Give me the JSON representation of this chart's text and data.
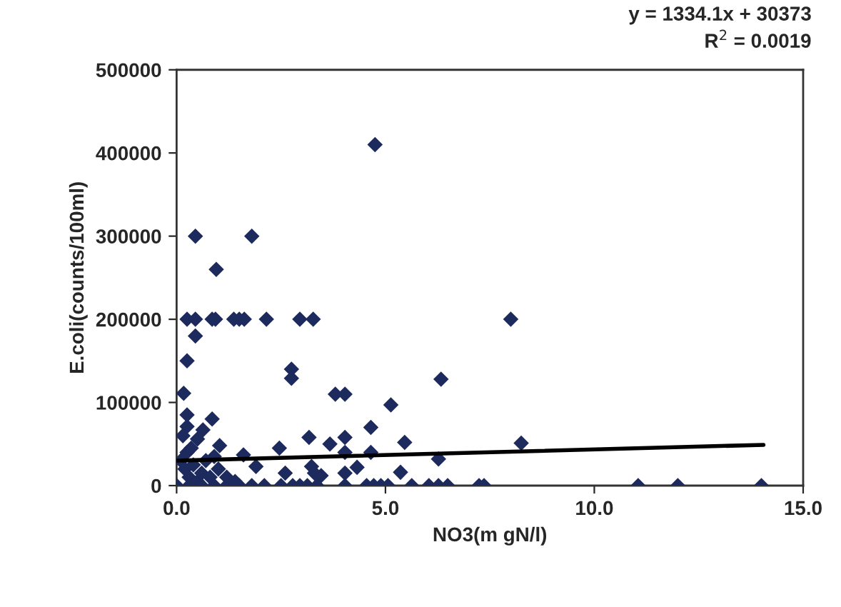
{
  "chart_data": {
    "type": "scatter",
    "xlabel": "NO3(m gN/l)",
    "ylabel": "E.coli(counts/100ml)",
    "annotations": [
      "y = 1334.1x + 30373",
      "R$^{2}$ = 0.0019"
    ],
    "xlim": [
      0,
      15
    ],
    "xticks": [
      {
        "value": 0,
        "label": "0.0"
      },
      {
        "value": 5,
        "label": "5.0"
      },
      {
        "value": 10,
        "label": "10.0"
      },
      {
        "value": 15,
        "label": "15.0"
      }
    ],
    "ylim": [
      0,
      500000
    ],
    "yticks": [
      0,
      100000,
      200000,
      300000,
      400000,
      500000
    ],
    "grid": false,
    "legend": false,
    "series": [
      {
        "marker": "diamond",
        "color": "#1c2a5e",
        "x": [
          4.75,
          0.45,
          1.8,
          0.95,
          0.25,
          0.45,
          0.85,
          0.93,
          1.37,
          1.5,
          1.62,
          2.15,
          2.95,
          3.27,
          8.0,
          0.45,
          0.25,
          2.75,
          2.75,
          6.33,
          0.17,
          3.8,
          4.03,
          5.13,
          0.25,
          0.85,
          0.25,
          0.63,
          4.65,
          3.17,
          4.03,
          0.5,
          5.46,
          3.67,
          2.46,
          1.03,
          0.25,
          4.03,
          4.65,
          1.6,
          6.27,
          8.25,
          1.9,
          3.23,
          4.32,
          3.3,
          2.6,
          4.03,
          3.46,
          5.36,
          0.1,
          0.2,
          0.3,
          0.4,
          0.5,
          0.6,
          0.7,
          0.8,
          1.0,
          1.2,
          1.4,
          0.15,
          0.35,
          0.9,
          0.0,
          0.3,
          0.6,
          0.9,
          1.2,
          1.5,
          1.8,
          2.1,
          2.5,
          2.78,
          2.95,
          3.13,
          3.36,
          4.03,
          4.55,
          4.72,
          4.89,
          5.06,
          5.63,
          6.04,
          6.27,
          6.49,
          7.24,
          7.36,
          11.05,
          12.0,
          14.0
        ],
        "values": [
          410000,
          300000,
          300000,
          260000,
          200000,
          200000,
          200000,
          200000,
          200000,
          200000,
          200000,
          200000,
          200000,
          200000,
          200000,
          180000,
          150000,
          140000,
          129000,
          128000,
          111000,
          110000,
          110000,
          97000,
          85000,
          80000,
          71000,
          67000,
          70000,
          58000,
          58000,
          56000,
          52000,
          50000,
          45000,
          48000,
          40000,
          40000,
          40000,
          37000,
          32000,
          51000,
          23000,
          23000,
          22000,
          15000,
          15000,
          15000,
          12000,
          16000,
          30000,
          20000,
          10000,
          25000,
          5000,
          15000,
          30000,
          10000,
          20000,
          10000,
          5000,
          60000,
          45000,
          35000,
          0,
          0,
          0,
          0,
          0,
          0,
          0,
          0,
          0,
          0,
          0,
          0,
          0,
          0,
          0,
          0,
          0,
          0,
          0,
          0,
          0,
          0,
          0,
          0,
          0,
          0,
          0
        ]
      },
      {
        "type": "line",
        "color": "#000000",
        "x": [
          0,
          14.05
        ],
        "values": [
          30000,
          49000
        ]
      }
    ]
  }
}
